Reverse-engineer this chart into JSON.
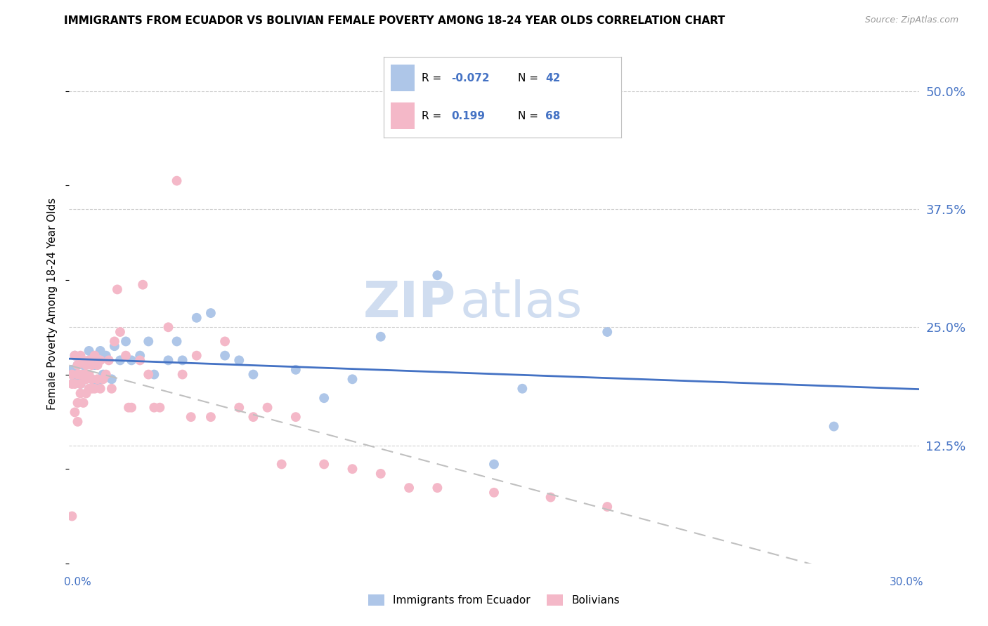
{
  "title": "IMMIGRANTS FROM ECUADOR VS BOLIVIAN FEMALE POVERTY AMONG 18-24 YEAR OLDS CORRELATION CHART",
  "source": "Source: ZipAtlas.com",
  "ylabel": "Female Poverty Among 18-24 Year Olds",
  "ytick_labels": [
    "50.0%",
    "37.5%",
    "25.0%",
    "12.5%"
  ],
  "ytick_values": [
    0.5,
    0.375,
    0.25,
    0.125
  ],
  "xlim": [
    0.0,
    0.3
  ],
  "ylim": [
    0.0,
    0.55
  ],
  "color_ecuador": "#aec6e8",
  "color_bolivians": "#f4b8c8",
  "color_line_ecuador": "#4472c4",
  "color_line_bolivians": "#e8a0b0",
  "watermark_zip": "ZIP",
  "watermark_atlas": "atlas",
  "ecuador_r": "-0.072",
  "ecuador_n": "42",
  "bolivians_r": "0.199",
  "bolivians_n": "68",
  "ecuador_points_x": [
    0.001,
    0.002,
    0.002,
    0.003,
    0.004,
    0.004,
    0.005,
    0.005,
    0.006,
    0.007,
    0.007,
    0.008,
    0.009,
    0.01,
    0.011,
    0.012,
    0.013,
    0.015,
    0.016,
    0.018,
    0.02,
    0.022,
    0.025,
    0.028,
    0.03,
    0.035,
    0.038,
    0.04,
    0.045,
    0.05,
    0.055,
    0.06,
    0.065,
    0.08,
    0.09,
    0.1,
    0.11,
    0.13,
    0.15,
    0.16,
    0.19,
    0.27
  ],
  "ecuador_points_y": [
    0.205,
    0.195,
    0.22,
    0.21,
    0.19,
    0.215,
    0.21,
    0.195,
    0.2,
    0.215,
    0.225,
    0.195,
    0.21,
    0.19,
    0.225,
    0.2,
    0.22,
    0.195,
    0.23,
    0.215,
    0.235,
    0.215,
    0.22,
    0.235,
    0.2,
    0.215,
    0.235,
    0.215,
    0.26,
    0.265,
    0.22,
    0.215,
    0.2,
    0.205,
    0.175,
    0.195,
    0.24,
    0.305,
    0.105,
    0.185,
    0.245,
    0.145
  ],
  "bolivians_points_x": [
    0.001,
    0.001,
    0.001,
    0.002,
    0.002,
    0.002,
    0.003,
    0.003,
    0.003,
    0.003,
    0.004,
    0.004,
    0.004,
    0.004,
    0.005,
    0.005,
    0.005,
    0.006,
    0.006,
    0.006,
    0.006,
    0.007,
    0.007,
    0.007,
    0.008,
    0.008,
    0.008,
    0.009,
    0.009,
    0.01,
    0.01,
    0.011,
    0.011,
    0.012,
    0.013,
    0.014,
    0.015,
    0.016,
    0.017,
    0.018,
    0.02,
    0.021,
    0.022,
    0.025,
    0.026,
    0.028,
    0.03,
    0.032,
    0.035,
    0.038,
    0.04,
    0.043,
    0.045,
    0.05,
    0.055,
    0.06,
    0.065,
    0.07,
    0.075,
    0.08,
    0.09,
    0.1,
    0.11,
    0.12,
    0.13,
    0.15,
    0.17,
    0.19
  ],
  "bolivians_points_y": [
    0.05,
    0.19,
    0.2,
    0.16,
    0.22,
    0.19,
    0.2,
    0.21,
    0.17,
    0.15,
    0.18,
    0.22,
    0.19,
    0.2,
    0.2,
    0.215,
    0.17,
    0.2,
    0.21,
    0.18,
    0.195,
    0.215,
    0.185,
    0.2,
    0.21,
    0.195,
    0.185,
    0.22,
    0.185,
    0.21,
    0.195,
    0.215,
    0.185,
    0.195,
    0.2,
    0.215,
    0.185,
    0.235,
    0.29,
    0.245,
    0.22,
    0.165,
    0.165,
    0.215,
    0.295,
    0.2,
    0.165,
    0.165,
    0.25,
    0.405,
    0.2,
    0.155,
    0.22,
    0.155,
    0.235,
    0.165,
    0.155,
    0.165,
    0.105,
    0.155,
    0.105,
    0.1,
    0.095,
    0.08,
    0.08,
    0.075,
    0.07,
    0.06
  ]
}
